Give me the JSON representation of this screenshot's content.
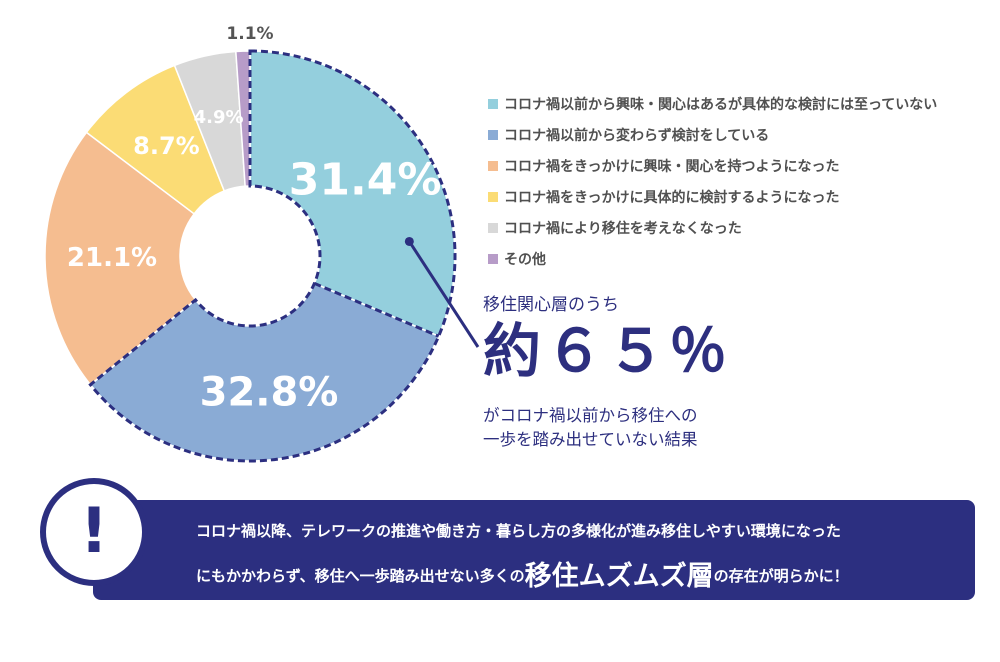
{
  "chart_data": {
    "type": "pie",
    "categories": [
      "コロナ禍以前から興味・関心はあるが具体的な検討には至っていない",
      "コロナ禍以前から変わらず検討をしている",
      "コロナ禍をきっかけに興味・関心を持つようになった",
      "コロナ禍をきっかけに具体的に検討するようになった",
      "コロナ禍により移住を考えなくなった",
      "その他"
    ],
    "values": [
      31.4,
      32.8,
      21.1,
      8.7,
      4.9,
      1.1
    ],
    "labels": [
      "31.4%",
      "32.8%",
      "21.1%",
      "8.7%",
      "4.9%",
      "1.1%"
    ],
    "colors": [
      "#94cfdd",
      "#8aabd5",
      "#f5bd90",
      "#fbdc75",
      "#d8d8d8",
      "#b79cc8"
    ],
    "highlight_color": "#2c2f80",
    "highlighted": [
      0,
      1
    ],
    "legend_position": "right"
  },
  "callout": {
    "lead": "移住関心層のうち",
    "big": "約６５％",
    "tail_line1": "がコロナ禍以前から移住への",
    "tail_line2": "一歩を踏み出せていない結果"
  },
  "banner": {
    "icon": "exclamation-icon",
    "mark": "!",
    "line1": "コロナ禍以降、テレワークの推進や働き方・暮らし方の多様化が進み移住しやすい環境になった",
    "line2_pre": "にもかかわらず、移住へ一歩踏み出せない多くの",
    "line2_emph": "移住ムズムズ層",
    "line2_post": "の存在が明らかに！"
  }
}
